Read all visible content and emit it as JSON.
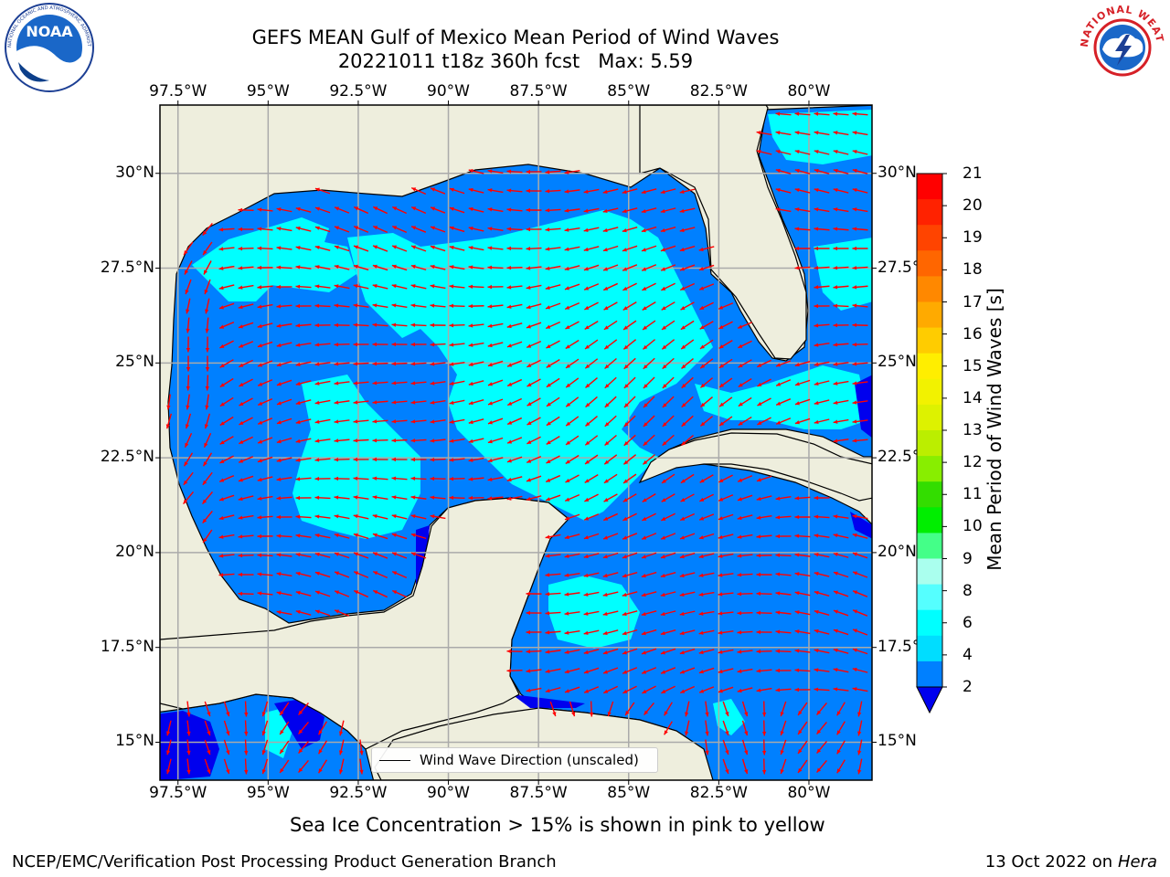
{
  "header": {
    "title_line1": "GEFS MEAN Gulf of Mexico Mean Period of Wind Waves",
    "title_line2": "20221011 t18z 360h fcst   Max: 5.59"
  },
  "logos": {
    "left": {
      "name": "NOAA",
      "ring_text": "NATIONAL OCEANIC AND ATMOSPHERIC ADMINISTRATION · U.S. DEPARTMENT OF COMMERCE"
    },
    "right": {
      "name": "NATIONAL WEATHER SERVICE"
    }
  },
  "map": {
    "lon_labels": [
      "97.5°W",
      "95°W",
      "92.5°W",
      "90°W",
      "87.5°W",
      "85°W",
      "82.5°W",
      "80°W"
    ],
    "lat_labels_left": [
      "30°N",
      "27.5°N",
      "25°N",
      "22.5°N",
      "20°N",
      "17.5°N",
      "15°N"
    ],
    "lat_labels_right": [
      "30°N",
      "27.5°",
      "25°N",
      "22.5°",
      "20°N",
      "17.5°",
      "15°N"
    ],
    "lon_range": [
      -98,
      -78.25
    ],
    "lat_range": [
      14,
      31.8
    ],
    "grid": true,
    "colors": {
      "land": "#eeeedd",
      "coast": "#000000",
      "ocean_2_4": "#0080ff",
      "ocean_4_6": "#00ffff",
      "ocean_lt2": "#0000ee",
      "arrows": "#ff0000"
    }
  },
  "legend": {
    "label": "Wind Wave Direction (unscaled)"
  },
  "colorbar": {
    "label": "Mean Period of Wind Waves [s]",
    "ticks": [
      "21",
      "20",
      "19",
      "18",
      "17",
      "16",
      "15",
      "14",
      "13",
      "12",
      "11",
      "10",
      "9",
      "8",
      "6",
      "4",
      "2"
    ],
    "colors": [
      "#ff0000",
      "#ff2200",
      "#ff4400",
      "#ff6600",
      "#ff8800",
      "#ffaa00",
      "#ffcc00",
      "#ffee00",
      "#f2f200",
      "#ddf200",
      "#bbee00",
      "#88ee00",
      "#33dd00",
      "#00ee00",
      "#44ff88",
      "#aaffee",
      "#55ffff",
      "#00ffff",
      "#00ddff",
      "#0080ff"
    ],
    "under_color": "#0000ee"
  },
  "footer": {
    "note": "Sea Ice Concentration > 15% is shown in pink to yellow",
    "left": "NCEP/EMC/Verification Post Processing Product Generation Branch",
    "right_prefix": "13 Oct 2022 on ",
    "right_machine": "Hera"
  }
}
